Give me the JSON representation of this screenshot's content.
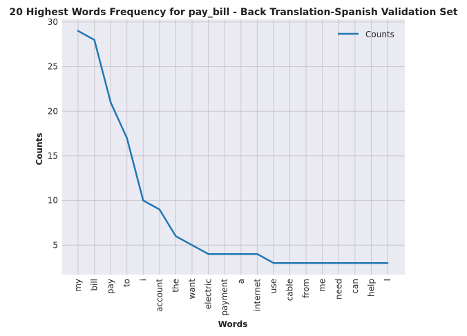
{
  "chart_data": {
    "type": "line",
    "title": "20 Highest Words Frequency for pay_bill - Back Translation-Spanish Validation Set",
    "xlabel": "Words",
    "ylabel": "Counts",
    "categories": [
      "my",
      "bill",
      "pay",
      "to",
      "i",
      "account",
      "the",
      "want",
      "electric",
      "payment",
      "a",
      "internet",
      "use",
      "cable",
      "from",
      "me",
      "need",
      "can",
      "help",
      "I"
    ],
    "series": [
      {
        "name": "Counts",
        "values": [
          29,
          28,
          21,
          17,
          10,
          9,
          6,
          5,
          4,
          4,
          4,
          4,
          3,
          3,
          3,
          3,
          3,
          3,
          3,
          3
        ]
      }
    ],
    "ylim": [
      1.7,
      30.3
    ],
    "yticks": [
      5,
      10,
      15,
      20,
      25,
      30
    ],
    "grid": true,
    "legend_position": "top-right",
    "line_color": "#1f77b4",
    "background_color": "#eaeaf2",
    "grid_color": "#c8c8cc"
  }
}
